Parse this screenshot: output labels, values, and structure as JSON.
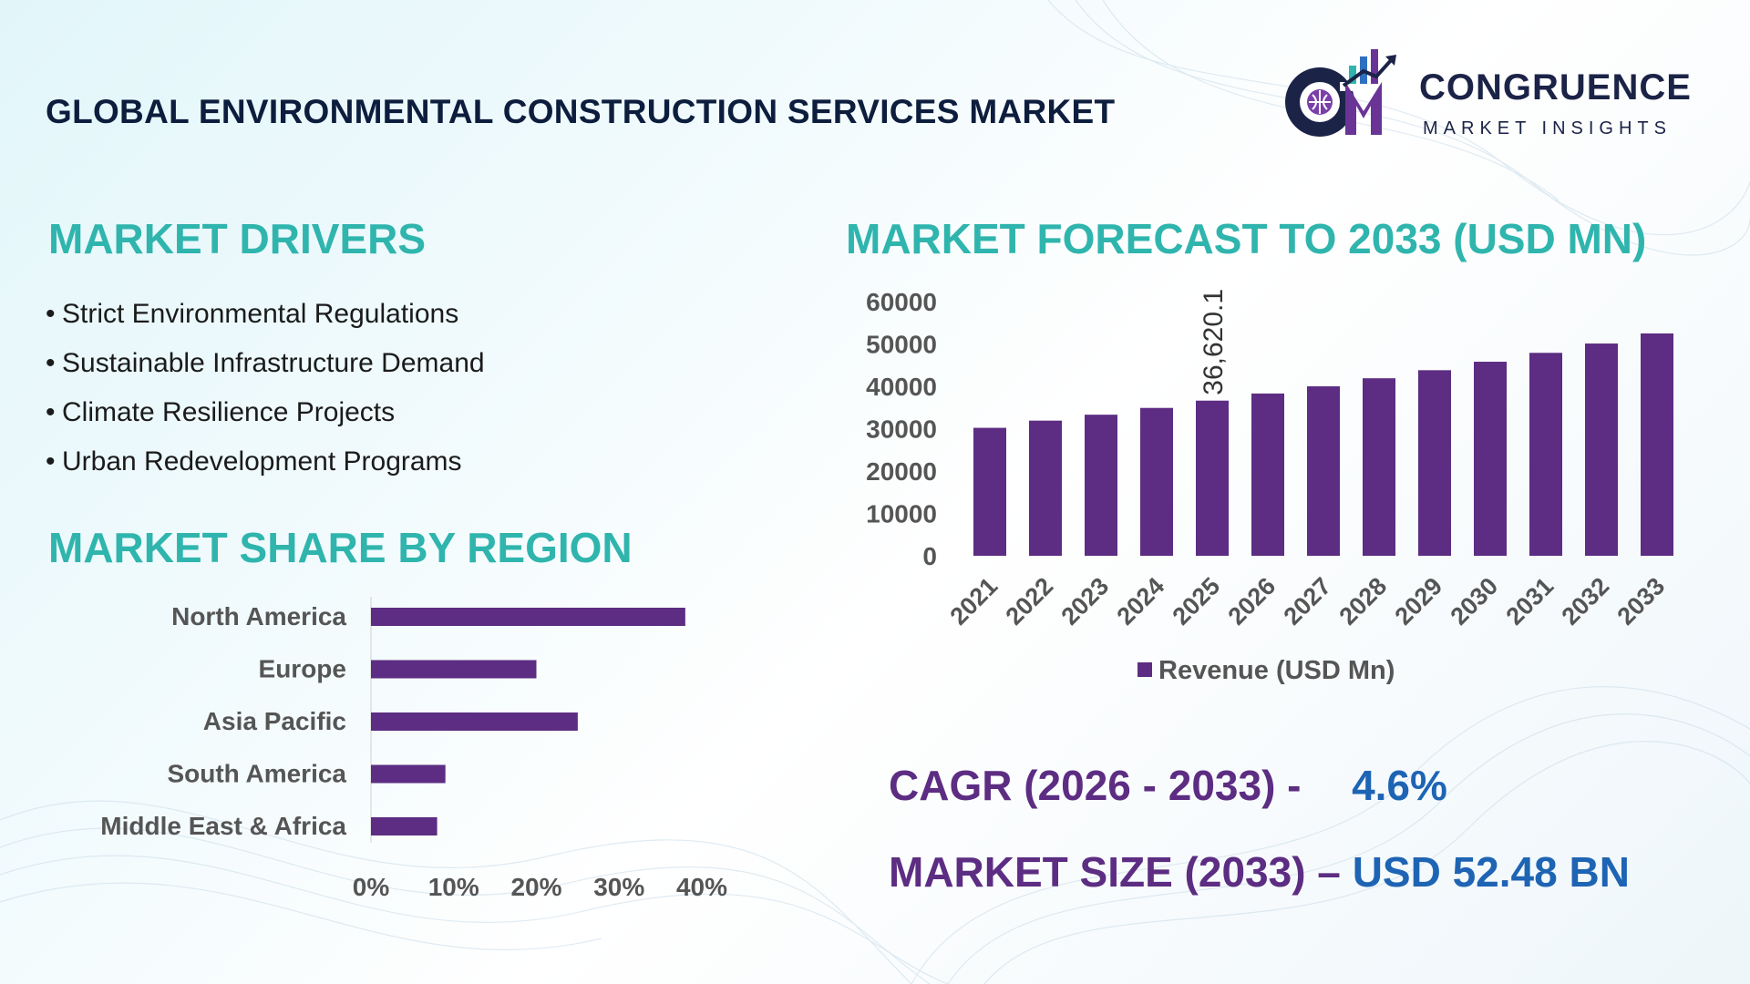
{
  "title": "GLOBAL ENVIRONMENTAL CONSTRUCTION SERVICES MARKET",
  "logo": {
    "monogram": "CM",
    "name": "CONGRUENCE",
    "tagline": "MARKET INSIGHTS"
  },
  "drivers": {
    "title": "MARKET DRIVERS",
    "items": [
      "Strict Environmental Regulations",
      "Sustainable Infrastructure Demand",
      "Climate Resilience Projects",
      "Urban Redevelopment Programs"
    ]
  },
  "region_section_title": "MARKET SHARE BY REGION",
  "forecast_section_title": "MARKET FORECAST TO 2033 (USD MN)",
  "stats": {
    "cagr_label": "CAGR (2026 - 2033) -",
    "cagr_value": "4.6%",
    "size_label": "MARKET SIZE (2033) –",
    "size_value": "USD 52.48 BN"
  },
  "colors": {
    "bar": "#5c2d82",
    "heading": "#2fb5ad",
    "accent_blue": "#1e64b4",
    "title": "#0d1d3d"
  },
  "chart_data": [
    {
      "type": "bar",
      "orientation": "horizontal",
      "categories": [
        "North America",
        "Europe",
        "Asia Pacific",
        "South America",
        "Middle East & Africa"
      ],
      "values": [
        38,
        20,
        25,
        9,
        8
      ],
      "xlim": [
        0,
        40
      ],
      "xticks": [
        "0%",
        "10%",
        "20%",
        "30%",
        "40%"
      ],
      "grid": false
    },
    {
      "type": "bar",
      "categories": [
        "2021",
        "2022",
        "2023",
        "2024",
        "2025",
        "2026",
        "2027",
        "2028",
        "2029",
        "2030",
        "2031",
        "2032",
        "2033"
      ],
      "series": [
        {
          "name": "Revenue (USD Mn)",
          "values": [
            30200,
            31900,
            33300,
            34900,
            36620.1,
            38300,
            40000,
            41900,
            43800,
            45800,
            47900,
            50100,
            52480
          ]
        }
      ],
      "data_labels": {
        "2025": "36,620.1"
      },
      "ylim": [
        0,
        60000
      ],
      "yticks": [
        "60000",
        "50000",
        "40000",
        "30000",
        "20000",
        "10000",
        "0"
      ],
      "legend": "bottom",
      "grid": false
    }
  ]
}
